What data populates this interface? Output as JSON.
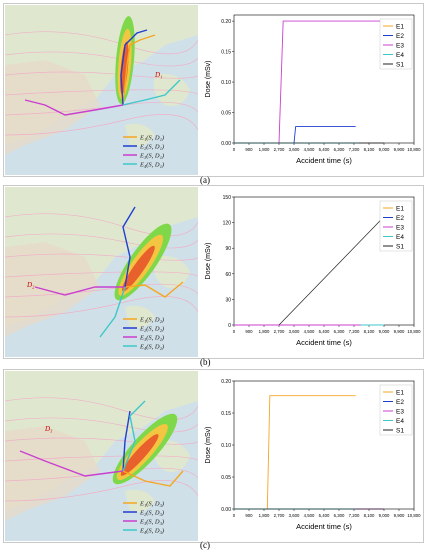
{
  "colors": {
    "E1": "#f5a623",
    "E2": "#1f3fd1",
    "E3": "#c93fcf",
    "E4": "#3ec8c8",
    "S1": "#222222",
    "sea": "#cfe0e8",
    "land": "#dfe8cf"
  },
  "panels": [
    {
      "label": "(a)",
      "legend": [
        "E₁(S, D₁)",
        "E₂(S, D₁)",
        "E₃(S, D₁)",
        "E₄(S, D₁)"
      ],
      "legend_keys": [
        "E1",
        "E2",
        "E3",
        "E4"
      ],
      "map_labels": [
        "D₁"
      ],
      "chart": {
        "ylabel": "Dose (mSv)",
        "xlabel": "Accident time (s)",
        "yticks": [
          "0.00",
          "0.05",
          "0.10",
          "0.15",
          "0.20"
        ],
        "xticks": [
          "0",
          "900",
          "1,800",
          "2,700",
          "3,600",
          "4,500",
          "5,400",
          "6,300",
          "7,200",
          "8,100",
          "9,000",
          "9,900",
          "10,800"
        ],
        "legend": [
          "E1",
          "E2",
          "E3",
          "E4",
          "S1"
        ]
      }
    },
    {
      "label": "(b)",
      "legend": [
        "E₁(S, D₂)",
        "E₂(S, D₂)",
        "E₃(S, D₂)",
        "E₄(S, D₂)"
      ],
      "legend_keys": [
        "E1",
        "E2",
        "E3",
        "E4"
      ],
      "map_labels": [
        "D₂"
      ],
      "chart": {
        "ylabel": "Dose (mSv)",
        "xlabel": "Accident time (s)",
        "yticks": [
          "0",
          "30",
          "60",
          "90",
          "120",
          "150"
        ],
        "xticks": [
          "0",
          "900",
          "1,800",
          "2,700",
          "3,600",
          "4,500",
          "5,400",
          "6,300",
          "7,200",
          "8,100",
          "9,000",
          "9,900",
          "10,800"
        ],
        "legend": [
          "E1",
          "E2",
          "E3",
          "E4",
          "S1"
        ]
      }
    },
    {
      "label": "(c)",
      "legend": [
        "E₁(S, D₃)",
        "E₂(S, D₃)",
        "E₃(S, D₃)",
        "E₄(S, D₃)"
      ],
      "legend_keys": [
        "E1",
        "E2",
        "E3",
        "E4"
      ],
      "map_labels": [
        "D₃"
      ],
      "chart": {
        "ylabel": "Dose (mSv)",
        "xlabel": "Accident time (s)",
        "yticks": [
          "0.00",
          "0.05",
          "0.10",
          "0.15",
          "0.20"
        ],
        "xticks": [
          "0",
          "900",
          "1,800",
          "2,700",
          "3,600",
          "4,500",
          "5,400",
          "6,300",
          "7,200",
          "8,100",
          "9,000",
          "9,900",
          "10,800"
        ],
        "legend": [
          "E1",
          "E2",
          "E3",
          "E4",
          "S1"
        ]
      }
    }
  ],
  "chart_data": [
    {
      "type": "line",
      "xlabel": "Accident time (s)",
      "ylabel": "Dose (mSv)",
      "xlim": [
        0,
        10800
      ],
      "ylim": [
        0,
        0.21
      ],
      "series": [
        {
          "name": "E1",
          "x": [
            0,
            7300
          ],
          "y": [
            0,
            0
          ]
        },
        {
          "name": "E2",
          "x": [
            0,
            3600,
            3700,
            7300
          ],
          "y": [
            0,
            0,
            0.027,
            0.027
          ]
        },
        {
          "name": "E3",
          "x": [
            0,
            2700,
            2950,
            9000
          ],
          "y": [
            0,
            0,
            0.2,
            0.2
          ]
        },
        {
          "name": "E4",
          "x": [
            0,
            7500
          ],
          "y": [
            0,
            0
          ]
        },
        {
          "name": "S1",
          "x": [
            0,
            9000
          ],
          "y": [
            0,
            0
          ]
        }
      ]
    },
    {
      "type": "line",
      "xlabel": "Accident time (s)",
      "ylabel": "Dose (mSv)",
      "xlim": [
        0,
        10800
      ],
      "ylim": [
        0,
        150
      ],
      "series": [
        {
          "name": "E1",
          "x": [
            0,
            7600
          ],
          "y": [
            0,
            0
          ]
        },
        {
          "name": "E2",
          "x": [
            0,
            8100
          ],
          "y": [
            0,
            0
          ]
        },
        {
          "name": "E3",
          "x": [
            0,
            8100
          ],
          "y": [
            0,
            0
          ]
        },
        {
          "name": "E4",
          "x": [
            7600,
            9000
          ],
          "y": [
            0,
            0
          ]
        },
        {
          "name": "S1",
          "x": [
            2700,
            9900
          ],
          "y": [
            0,
            145
          ]
        }
      ]
    },
    {
      "type": "line",
      "xlabel": "Accident time (s)",
      "ylabel": "Dose (mSv)",
      "xlim": [
        0,
        10800
      ],
      "ylim": [
        0,
        0.2
      ],
      "series": [
        {
          "name": "E1",
          "x": [
            0,
            2000,
            2150,
            7300
          ],
          "y": [
            0,
            0,
            0.177,
            0.177
          ]
        },
        {
          "name": "E2",
          "x": [
            0,
            8300
          ],
          "y": [
            0,
            0
          ]
        },
        {
          "name": "E3",
          "x": [
            0,
            9000
          ],
          "y": [
            0,
            0
          ]
        },
        {
          "name": "E4",
          "x": [
            0,
            7300
          ],
          "y": [
            0,
            0
          ]
        },
        {
          "name": "S1",
          "x": [
            0,
            9000
          ],
          "y": [
            0,
            0
          ]
        }
      ]
    }
  ]
}
